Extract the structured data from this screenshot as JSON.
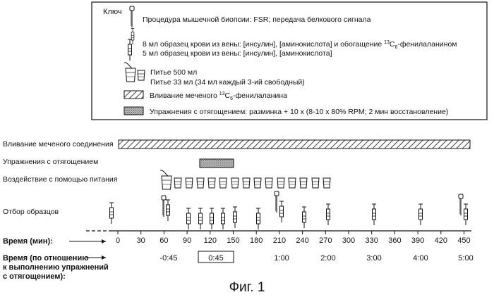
{
  "key": {
    "title": "Ключ",
    "biopsy": "Процедура мышечной биопсии: FSR; передача белкового сигнала",
    "blood_8ml_pre": "8 мл образец крови из вены: [инсулин], [аминокислота] и обогащение ",
    "blood_8ml_sup": "13",
    "blood_8ml_c": "C",
    "blood_8ml_sub": "6",
    "blood_8ml_post": "-фенилаланином",
    "blood_5ml": "5 мл образец крови из вены: [инсулин], [аминокислота]",
    "drink_500": "Питье 500 мл",
    "drink_33": "Питье 33 мл (34 мл каждый 3-ий свободный)",
    "infusion_pre": "Вливание меченого ",
    "infusion_sup": "13",
    "infusion_c": "C",
    "infusion_sub": "6",
    "infusion_post": "-фенилаланина",
    "exercise": "Упражнения с отягощением: разминка + 10 х (8-10 х 80% RPM; 2 мин восстановление)"
  },
  "rows": {
    "infusion": "Вливание меченого соединения",
    "exercise": "Упражнения с отягощением",
    "nutrition": "Воздействие с помощью питания",
    "sampling": "Отбор образцов"
  },
  "axis": {
    "time_label": "Время (мин):",
    "ticks": [
      "0",
      "30",
      "60",
      "90",
      "120",
      "150",
      "180",
      "210",
      "240",
      "270",
      "300",
      "330",
      "360",
      "390",
      "420",
      "450"
    ],
    "rel_label_lines": [
      "Время (по отношению",
      "к выполнению упражнений",
      "с отягощением):"
    ],
    "rel_ticks": [
      "-0:45",
      "0:45",
      "1:00",
      "2:00",
      "3:00",
      "4:00",
      "5:00"
    ]
  },
  "caption": "Фиг. 1",
  "colors": {
    "line": "#111111",
    "hatch_fill": "#ffffff",
    "exercise_fill": "#9a9a9a"
  }
}
